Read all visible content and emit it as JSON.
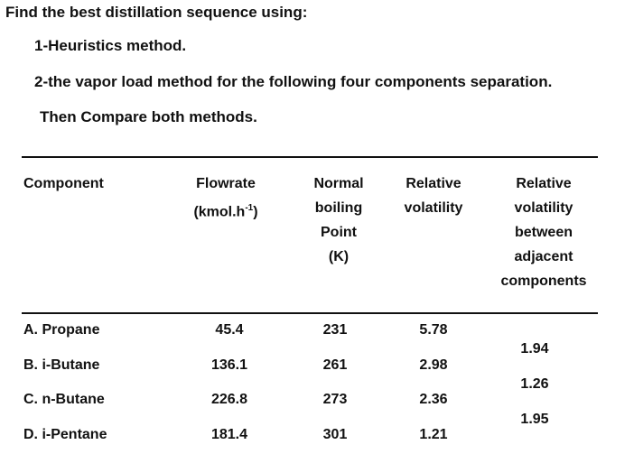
{
  "problem": {
    "title": "Find the best distillation sequence using:",
    "item1": "1-Heuristics method.",
    "item2": "2-the vapor load method for the following four components separation.",
    "item3": "Then Compare both methods."
  },
  "table": {
    "headers": {
      "component": "Component",
      "flowrate_line1": "Flowrate",
      "flowrate_prefix": "(kmol.h",
      "flowrate_sup": "-1",
      "flowrate_suffix": ")",
      "nbp_line1": "Normal",
      "nbp_line2": "boiling",
      "nbp_line3": "Point",
      "nbp_line4": "(K)",
      "relvol_line1": "Relative",
      "relvol_line2": "volatility",
      "reladj_line1": "Relative",
      "reladj_line2": "volatility",
      "reladj_line3": "between",
      "reladj_line4": "adjacent",
      "reladj_line5": "components"
    },
    "rows": [
      {
        "label": "A. Propane",
        "flowrate": "45.4",
        "boiling_point": "231",
        "relative_volatility": "5.78"
      },
      {
        "label": "B. i-Butane",
        "flowrate": "136.1",
        "boiling_point": "261",
        "relative_volatility": "2.98"
      },
      {
        "label": "C. n-Butane",
        "flowrate": "226.8",
        "boiling_point": "273",
        "relative_volatility": "2.36"
      },
      {
        "label": "D. i-Pentane",
        "flowrate": "181.4",
        "boiling_point": "301",
        "relative_volatility": "1.21"
      }
    ],
    "adjacent": [
      "1.94",
      "1.26",
      "1.95"
    ]
  }
}
